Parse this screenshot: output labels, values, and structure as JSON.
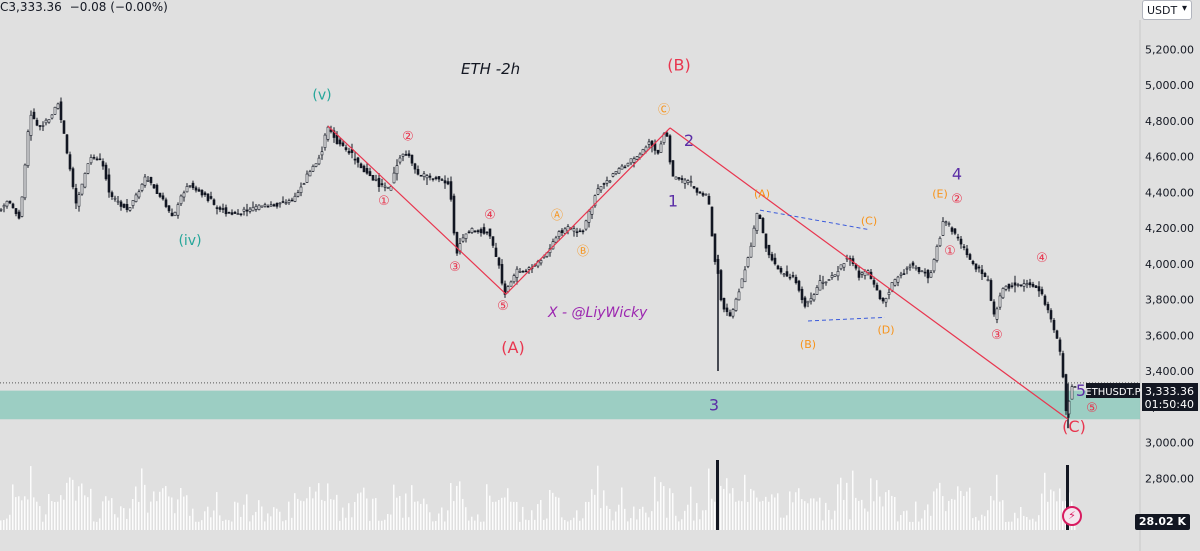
{
  "header": {
    "symbol_price": "C3,333.36",
    "change": "−0.08 (−0.00%)"
  },
  "currency_button": {
    "label": "USDT",
    "icon": "chevron-down-icon"
  },
  "title_text": "ETH -2h",
  "watermark": "X - @LiyWicky",
  "price_axis": {
    "ticks": [
      "5,200.00",
      "5,000.00",
      "4,800.00",
      "4,600.00",
      "4,400.00",
      "4,200.00",
      "4,000.00",
      "3,800.00",
      "3,600.00",
      "3,400.00",
      "3,200.00",
      "3,000.00",
      "2,800.00"
    ],
    "tick_values": [
      5200,
      5000,
      4800,
      4600,
      4400,
      4200,
      4000,
      3800,
      3600,
      3400,
      3200,
      3000,
      2800
    ]
  },
  "last_price": {
    "symbol": "ETHUSDT.P",
    "price": "3,333.36",
    "countdown": "01:50:40",
    "value": 3333.36
  },
  "volume_badge": "28.02 K",
  "colors": {
    "background": "#e0e0e0",
    "candle": "#131722",
    "wave_line": "#e8364f",
    "blue_dash": "#3b5bdb",
    "zone": "#8fcabd",
    "green_label": "#26a69a",
    "red_label": "#e8364f",
    "orange_label": "#f7931a",
    "purple_label": "#5b2ea6",
    "watermark": "#9c27b0"
  },
  "chart_data": {
    "type": "candlestick",
    "title": "ETH -2h",
    "ylim": [
      2620,
      5400
    ],
    "price_path": [
      [
        0,
        4300
      ],
      [
        10,
        4350
      ],
      [
        22,
        4250
      ],
      [
        32,
        4850
      ],
      [
        40,
        4760
      ],
      [
        52,
        4820
      ],
      [
        60,
        4900
      ],
      [
        66,
        4720
      ],
      [
        78,
        4320
      ],
      [
        92,
        4600
      ],
      [
        104,
        4580
      ],
      [
        112,
        4380
      ],
      [
        130,
        4300
      ],
      [
        148,
        4490
      ],
      [
        162,
        4380
      ],
      [
        175,
        4260
      ],
      [
        190,
        4450
      ],
      [
        208,
        4380
      ],
      [
        222,
        4300
      ],
      [
        240,
        4280
      ],
      [
        260,
        4320
      ],
      [
        280,
        4330
      ],
      [
        296,
        4360
      ],
      [
        310,
        4500
      ],
      [
        322,
        4600
      ],
      [
        330,
        4770
      ],
      [
        340,
        4680
      ],
      [
        352,
        4620
      ],
      [
        366,
        4520
      ],
      [
        380,
        4450
      ],
      [
        392,
        4420
      ],
      [
        400,
        4590
      ],
      [
        410,
        4620
      ],
      [
        420,
        4500
      ],
      [
        440,
        4470
      ],
      [
        452,
        4440
      ],
      [
        458,
        4050
      ],
      [
        466,
        4170
      ],
      [
        476,
        4190
      ],
      [
        490,
        4180
      ],
      [
        500,
        4020
      ],
      [
        506,
        3830
      ],
      [
        518,
        3950
      ],
      [
        534,
        3980
      ],
      [
        548,
        4050
      ],
      [
        560,
        4170
      ],
      [
        570,
        4200
      ],
      [
        584,
        4180
      ],
      [
        600,
        4420
      ],
      [
        620,
        4520
      ],
      [
        640,
        4600
      ],
      [
        652,
        4680
      ],
      [
        660,
        4620
      ],
      [
        668,
        4760
      ],
      [
        674,
        4480
      ],
      [
        690,
        4460
      ],
      [
        702,
        4390
      ],
      [
        710,
        4380
      ],
      [
        716,
        4050
      ],
      [
        720,
        3950
      ],
      [
        724,
        3760
      ],
      [
        732,
        3700
      ],
      [
        742,
        3870
      ],
      [
        752,
        4080
      ],
      [
        760,
        4300
      ],
      [
        770,
        4050
      ],
      [
        782,
        3950
      ],
      [
        796,
        3920
      ],
      [
        808,
        3760
      ],
      [
        822,
        3890
      ],
      [
        836,
        3930
      ],
      [
        850,
        4050
      ],
      [
        862,
        3930
      ],
      [
        870,
        3960
      ],
      [
        884,
        3780
      ],
      [
        896,
        3900
      ],
      [
        912,
        3990
      ],
      [
        932,
        3930
      ],
      [
        946,
        4250
      ],
      [
        960,
        4140
      ],
      [
        972,
        4020
      ],
      [
        990,
        3900
      ],
      [
        996,
        3700
      ],
      [
        1006,
        3870
      ],
      [
        1020,
        3890
      ],
      [
        1040,
        3880
      ],
      [
        1050,
        3730
      ],
      [
        1058,
        3600
      ],
      [
        1064,
        3440
      ],
      [
        1068,
        3170
      ],
      [
        1074,
        3310
      ]
    ],
    "wave_lines": [
      [
        [
          328,
          4770
        ],
        [
          506,
          3830
        ]
      ],
      [
        [
          506,
          3830
        ],
        [
          670,
          4760
        ]
      ],
      [
        [
          670,
          4760
        ],
        [
          1068,
          3130
        ]
      ]
    ],
    "triangle": [
      [
        [
          760,
          4300
        ],
        [
          870,
          4190
        ]
      ],
      [
        [
          808,
          3680
        ],
        [
          885,
          3700
        ]
      ]
    ],
    "zone": [
      3130,
      3290
    ],
    "last_price": 3333.36,
    "labels": [
      {
        "text": "(v)",
        "x": 322,
        "y": 4920,
        "c": "green_label",
        "s": 14
      },
      {
        "text": "(iv)",
        "x": 190,
        "y": 4105,
        "c": "green_label",
        "s": 14
      },
      {
        "text": "②",
        "x": 408,
        "y": 4690,
        "c": "red_label",
        "s": 13
      },
      {
        "text": "①",
        "x": 384,
        "y": 4330,
        "c": "red_label",
        "s": 13
      },
      {
        "text": "④",
        "x": 490,
        "y": 4250,
        "c": "red_label",
        "s": 13
      },
      {
        "text": "③",
        "x": 455,
        "y": 3960,
        "c": "red_label",
        "s": 13
      },
      {
        "text": "⑤",
        "x": 503,
        "y": 3740,
        "c": "red_label",
        "s": 13
      },
      {
        "text": "(A)",
        "x": 513,
        "y": 3500,
        "c": "red_label",
        "s": 16
      },
      {
        "text": "Ⓐ",
        "x": 557,
        "y": 4250,
        "c": "orange_label",
        "s": 12
      },
      {
        "text": "Ⓑ",
        "x": 583,
        "y": 4050,
        "c": "orange_label",
        "s": 12
      },
      {
        "text": "Ⓒ",
        "x": 664,
        "y": 4840,
        "c": "orange_label",
        "s": 12
      },
      {
        "text": "(B)",
        "x": 679,
        "y": 5080,
        "c": "red_label",
        "s": 16
      },
      {
        "text": "2",
        "x": 689,
        "y": 4660,
        "c": "purple_label",
        "s": 16
      },
      {
        "text": "1",
        "x": 673,
        "y": 4320,
        "c": "purple_label",
        "s": 16
      },
      {
        "text": "3",
        "x": 714,
        "y": 3180,
        "c": "purple_label",
        "s": 16
      },
      {
        "text": "(A)",
        "x": 762,
        "y": 4370,
        "c": "orange_label",
        "s": 11
      },
      {
        "text": "(B)",
        "x": 808,
        "y": 3530,
        "c": "orange_label",
        "s": 11
      },
      {
        "text": "(C)",
        "x": 869,
        "y": 4220,
        "c": "orange_label",
        "s": 11
      },
      {
        "text": "(D)",
        "x": 886,
        "y": 3610,
        "c": "orange_label",
        "s": 11
      },
      {
        "text": "(E)",
        "x": 940,
        "y": 4370,
        "c": "orange_label",
        "s": 11
      },
      {
        "text": "4",
        "x": 957,
        "y": 4470,
        "c": "purple_label",
        "s": 16
      },
      {
        "text": "②",
        "x": 957,
        "y": 4340,
        "c": "red_label",
        "s": 13
      },
      {
        "text": "①",
        "x": 950,
        "y": 4050,
        "c": "red_label",
        "s": 13
      },
      {
        "text": "④",
        "x": 1042,
        "y": 4010,
        "c": "red_label",
        "s": 13
      },
      {
        "text": "③",
        "x": 997,
        "y": 3580,
        "c": "red_label",
        "s": 13
      },
      {
        "text": "5",
        "x": 1081,
        "y": 3260,
        "c": "purple_label",
        "s": 16
      },
      {
        "text": "⑤",
        "x": 1092,
        "y": 3170,
        "c": "red_label",
        "s": 13
      },
      {
        "text": "(C)",
        "x": 1074,
        "y": 3060,
        "c": "red_label",
        "s": 16
      }
    ]
  }
}
